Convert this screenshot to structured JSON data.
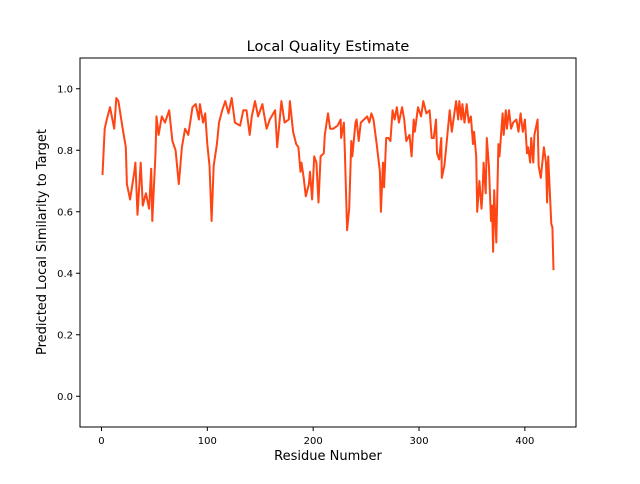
{
  "chart_data": {
    "type": "line",
    "title": "Local Quality Estimate",
    "xlabel": "Residue Number",
    "ylabel": "Predicted Local Similarity to Target",
    "xlim": [
      -20.3,
      448.3
    ],
    "ylim": [
      -0.1,
      1.1
    ],
    "xticks": [
      0,
      100,
      200,
      300,
      400
    ],
    "xtick_labels": [
      "0",
      "100",
      "200",
      "300",
      "400"
    ],
    "yticks": [
      0.0,
      0.2,
      0.4,
      0.6,
      0.8,
      1.0
    ],
    "ytick_labels": [
      "0.0",
      "0.2",
      "0.4",
      "0.6",
      "0.8",
      "1.0"
    ],
    "grid": false,
    "line_color": "#ff4514",
    "series": [
      {
        "x": [
          1,
          3,
          5,
          8,
          12,
          14,
          16,
          20,
          23,
          24,
          27,
          31,
          32,
          34,
          37,
          39,
          42,
          45,
          47,
          48,
          51,
          52,
          54,
          57,
          60,
          64,
          67,
          70,
          73,
          76,
          79,
          82,
          86,
          89,
          92,
          93,
          96,
          98,
          100,
          102,
          104,
          106,
          109,
          111,
          114,
          117,
          120,
          123,
          126,
          131,
          134,
          137,
          140,
          142,
          145,
          148,
          152,
          153,
          156,
          159,
          164,
          166,
          170,
          173,
          177,
          178,
          181,
          184,
          186,
          188,
          189,
          191,
          193,
          196,
          197,
          199,
          201,
          203,
          205,
          207,
          210,
          211,
          214,
          216,
          219,
          223,
          226,
          226.4,
          229,
          230,
          232,
          234,
          236,
          237,
          240,
          241,
          243,
          245,
          248,
          251,
          253,
          255,
          257,
          260,
          263,
          264,
          266,
          267,
          269,
          271,
          273,
          275,
          277,
          279,
          281,
          284,
          286,
          288,
          291,
          293,
          295,
          296,
          299,
          302,
          304,
          307,
          310,
          312,
          314,
          316,
          317,
          319,
          321,
          321.5,
          324,
          326,
          329,
          331,
          335,
          337,
          338,
          340,
          341,
          343,
          345,
          347,
          349,
          351,
          352,
          354,
          355,
          357,
          359,
          360,
          361,
          363,
          364,
          366,
          368,
          369,
          370,
          371,
          373,
          375,
          376,
          379,
          380,
          382,
          383,
          385,
          387,
          389,
          392,
          394,
          396,
          398,
          400,
          402,
          403,
          405,
          406,
          408,
          409,
          412,
          413,
          415,
          418,
          420,
          421,
          422,
          425,
          426,
          427
        ],
        "y": [
          0.72,
          0.87,
          0.9,
          0.94,
          0.87,
          0.97,
          0.96,
          0.87,
          0.81,
          0.69,
          0.64,
          0.73,
          0.76,
          0.59,
          0.76,
          0.62,
          0.66,
          0.61,
          0.74,
          0.57,
          0.79,
          0.91,
          0.85,
          0.91,
          0.89,
          0.93,
          0.83,
          0.8,
          0.69,
          0.81,
          0.87,
          0.85,
          0.94,
          0.95,
          0.9,
          0.95,
          0.89,
          0.92,
          0.82,
          0.75,
          0.57,
          0.75,
          0.82,
          0.89,
          0.93,
          0.96,
          0.92,
          0.97,
          0.89,
          0.88,
          0.93,
          0.93,
          0.85,
          0.91,
          0.96,
          0.91,
          0.95,
          0.93,
          0.87,
          0.9,
          0.93,
          0.81,
          0.96,
          0.89,
          0.9,
          0.96,
          0.86,
          0.82,
          0.81,
          0.73,
          0.76,
          0.71,
          0.65,
          0.69,
          0.73,
          0.64,
          0.78,
          0.76,
          0.63,
          0.78,
          0.79,
          0.85,
          0.92,
          0.87,
          0.87,
          0.88,
          0.9,
          0.84,
          0.89,
          0.79,
          0.54,
          0.61,
          0.83,
          0.78,
          0.89,
          0.9,
          0.83,
          0.89,
          0.9,
          0.91,
          0.89,
          0.92,
          0.9,
          0.82,
          0.73,
          0.6,
          0.76,
          0.68,
          0.84,
          0.84,
          0.83,
          0.93,
          0.9,
          0.94,
          0.89,
          0.94,
          0.9,
          0.83,
          0.85,
          0.78,
          0.9,
          0.86,
          0.94,
          0.91,
          0.96,
          0.92,
          0.93,
          0.84,
          0.84,
          0.9,
          0.79,
          0.77,
          0.84,
          0.71,
          0.75,
          0.82,
          0.93,
          0.86,
          0.96,
          0.9,
          0.96,
          0.9,
          0.95,
          0.89,
          0.95,
          0.89,
          0.91,
          0.82,
          0.86,
          0.78,
          0.6,
          0.7,
          0.61,
          0.66,
          0.76,
          0.66,
          0.84,
          0.75,
          0.57,
          0.62,
          0.47,
          0.67,
          0.5,
          0.82,
          0.78,
          0.92,
          0.85,
          0.93,
          0.87,
          0.93,
          0.87,
          0.89,
          0.9,
          0.86,
          0.92,
          0.86,
          0.9,
          0.79,
          0.81,
          0.76,
          0.84,
          0.76,
          0.85,
          0.9,
          0.75,
          0.71,
          0.81,
          0.76,
          0.63,
          0.78,
          0.56,
          0.55,
          0.41
        ]
      }
    ]
  }
}
